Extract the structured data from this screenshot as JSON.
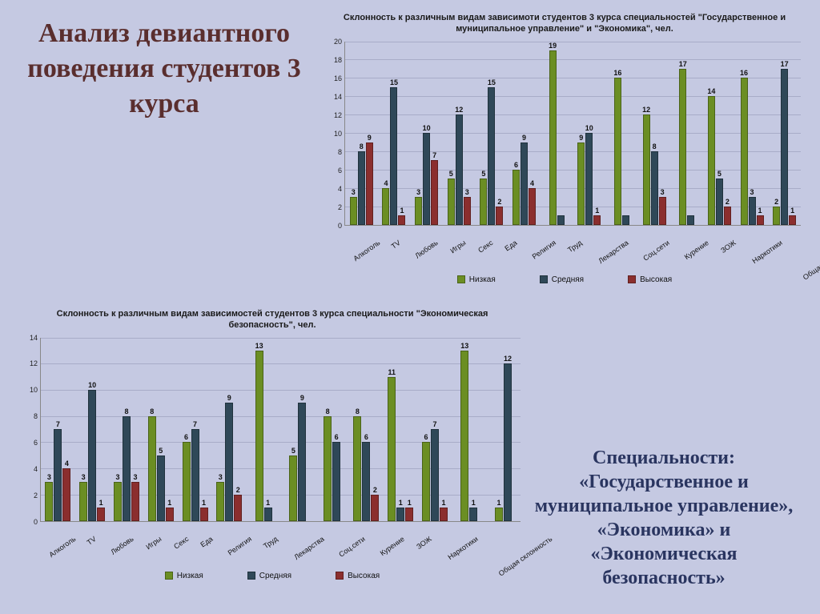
{
  "main_title": "Анализ девиантного поведения студентов 3 курса",
  "sub_title": "Специальности: «Государственное и муниципальное управление», «Экономика» и «Экономическая безопасность»",
  "legend": {
    "low": {
      "label": "Низкая",
      "color": "#6b8e23"
    },
    "mid": {
      "label": "Средняя",
      "color": "#2f4858"
    },
    "high": {
      "label": "Высокая",
      "color": "#8b2e2e"
    }
  },
  "charts": [
    {
      "id": "chart1",
      "title": "Склонность к различным видам зависимоти студентов 3 курса специальностей \"Государственное и муниципальное управление\" и \"Экономика\", чел.",
      "ylim": [
        0,
        20
      ],
      "ytick_step": 2,
      "categories": [
        "Алкоголь",
        "TV",
        "Любовь",
        "Игры",
        "Секс",
        "Еда",
        "Религия",
        "Труд",
        "Лекарства",
        "Соц.сети",
        "Курение",
        "ЗОЖ",
        "Наркотики",
        "Общая склонность"
      ],
      "series": {
        "low": [
          3,
          4,
          3,
          5,
          5,
          6,
          19,
          9,
          16,
          12,
          17,
          14,
          16,
          2
        ],
        "mid": [
          8,
          15,
          10,
          12,
          15,
          9,
          1,
          10,
          1,
          8,
          1,
          5,
          3,
          17
        ],
        "high": [
          9,
          1,
          7,
          3,
          2,
          4,
          null,
          1,
          null,
          3,
          null,
          2,
          1,
          1
        ]
      },
      "label_overrides_mid": {
        "6": null,
        "8": null,
        "10": null
      }
    },
    {
      "id": "chart2",
      "title": "Склонность к различным видам зависимостей студентов 3 курса специальности \"Экономическая безопасность\", чел.",
      "ylim": [
        0,
        14
      ],
      "ytick_step": 2,
      "categories": [
        "Алкоголь",
        "TV",
        "Любовь",
        "Игры",
        "Секс",
        "Еда",
        "Религия",
        "Труд",
        "Лекарства",
        "Соц.сети",
        "Курение",
        "ЗОЖ",
        "Наркотики",
        "Общая склонность"
      ],
      "series": {
        "low": [
          3,
          3,
          3,
          8,
          6,
          3,
          13,
          5,
          8,
          8,
          11,
          6,
          13,
          1
        ],
        "mid": [
          7,
          10,
          8,
          5,
          7,
          9,
          1,
          9,
          6,
          6,
          1,
          7,
          1,
          12
        ],
        "high": [
          4,
          1,
          3,
          1,
          1,
          2,
          null,
          null,
          null,
          2,
          1,
          1,
          null,
          null
        ]
      }
    }
  ]
}
